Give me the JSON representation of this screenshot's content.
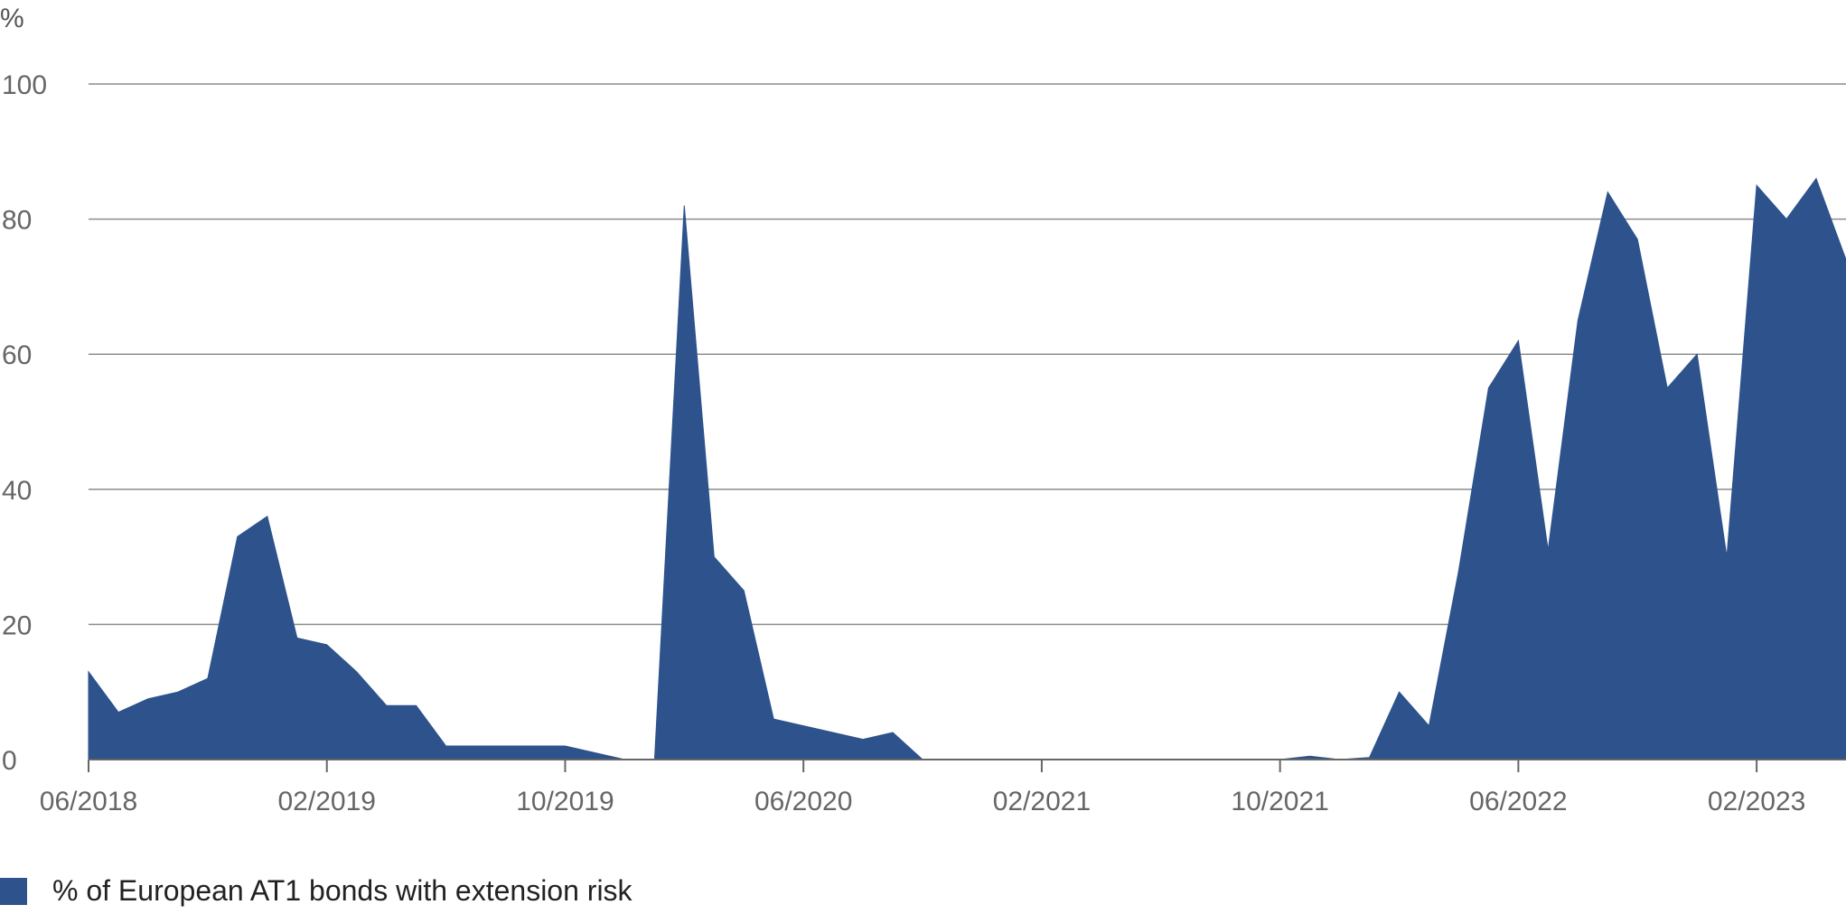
{
  "chart_data": {
    "type": "area",
    "title": "",
    "xlabel": "",
    "ylabel": "%",
    "ylim": [
      0,
      100
    ],
    "y_ticks": [
      0,
      20,
      40,
      60,
      80,
      100
    ],
    "x_ticks": [
      "06/2018",
      "02/2019",
      "10/2019",
      "06/2020",
      "02/2021",
      "10/2021",
      "06/2022",
      "02/2023"
    ],
    "xlim": [
      "2018-06",
      "2023-05"
    ],
    "grid": "horizontal",
    "legend_position": "bottom-left",
    "color": "#2d528c",
    "series": [
      {
        "name": "% of European AT1 bonds with extension risk",
        "x": [
          "2018-06",
          "2018-07",
          "2018-08",
          "2018-09",
          "2018-10",
          "2018-11",
          "2018-12",
          "2019-01",
          "2019-02",
          "2019-03",
          "2019-04",
          "2019-05",
          "2019-06",
          "2019-07",
          "2019-08",
          "2019-09",
          "2019-10",
          "2019-11",
          "2019-12",
          "2020-01",
          "2020-02",
          "2020-03",
          "2020-04",
          "2020-05",
          "2020-06",
          "2020-07",
          "2020-08",
          "2020-09",
          "2020-10",
          "2020-11",
          "2020-12",
          "2021-01",
          "2021-02",
          "2021-03",
          "2021-04",
          "2021-05",
          "2021-06",
          "2021-07",
          "2021-08",
          "2021-09",
          "2021-10",
          "2021-11",
          "2021-12",
          "2022-01",
          "2022-02",
          "2022-03",
          "2022-04",
          "2022-05",
          "2022-06",
          "2022-07",
          "2022-08",
          "2022-09",
          "2022-10",
          "2022-11",
          "2022-12",
          "2023-01",
          "2023-02",
          "2023-03",
          "2023-04",
          "2023-05"
        ],
        "values": [
          13,
          7,
          9,
          10,
          12,
          33,
          36,
          18,
          17,
          13,
          8,
          8,
          2,
          2,
          2,
          2,
          2,
          1,
          0,
          0,
          82,
          30,
          25,
          6,
          5,
          4,
          3,
          4,
          0,
          0,
          0,
          0,
          0,
          0,
          0,
          0,
          0,
          0,
          0,
          0,
          0,
          0.5,
          0,
          0.3,
          10,
          5,
          28,
          55,
          62,
          31,
          65,
          84,
          77,
          55,
          60,
          30,
          85,
          80,
          86,
          74
        ]
      }
    ]
  }
}
